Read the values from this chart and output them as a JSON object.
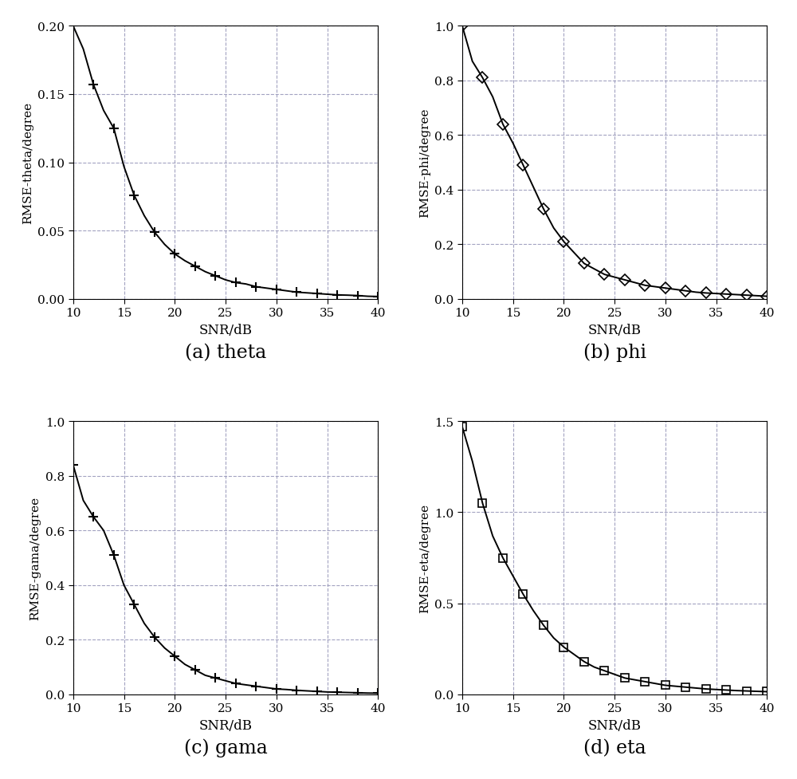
{
  "snr": [
    10,
    11,
    12,
    13,
    14,
    15,
    16,
    17,
    18,
    19,
    20,
    21,
    22,
    23,
    24,
    25,
    26,
    27,
    28,
    29,
    30,
    31,
    32,
    33,
    34,
    35,
    36,
    37,
    38,
    39,
    40
  ],
  "theta_y": [
    0.2,
    0.183,
    0.157,
    0.138,
    0.125,
    0.097,
    0.076,
    0.061,
    0.049,
    0.04,
    0.033,
    0.028,
    0.024,
    0.02,
    0.017,
    0.014,
    0.012,
    0.011,
    0.009,
    0.008,
    0.007,
    0.006,
    0.005,
    0.0045,
    0.004,
    0.0035,
    0.003,
    0.0028,
    0.0025,
    0.002,
    0.0018
  ],
  "phi_y": [
    1.0,
    0.87,
    0.81,
    0.74,
    0.64,
    0.57,
    0.49,
    0.41,
    0.33,
    0.26,
    0.21,
    0.17,
    0.13,
    0.11,
    0.09,
    0.08,
    0.07,
    0.06,
    0.05,
    0.045,
    0.04,
    0.035,
    0.03,
    0.025,
    0.022,
    0.02,
    0.018,
    0.016,
    0.014,
    0.012,
    0.01
  ],
  "gama_y": [
    0.84,
    0.71,
    0.65,
    0.6,
    0.51,
    0.4,
    0.33,
    0.26,
    0.21,
    0.17,
    0.14,
    0.11,
    0.09,
    0.07,
    0.06,
    0.05,
    0.04,
    0.035,
    0.03,
    0.025,
    0.02,
    0.018,
    0.015,
    0.013,
    0.011,
    0.009,
    0.008,
    0.007,
    0.006,
    0.005,
    0.0045
  ],
  "eta_y": [
    1.47,
    1.28,
    1.05,
    0.87,
    0.75,
    0.65,
    0.55,
    0.46,
    0.38,
    0.31,
    0.26,
    0.22,
    0.18,
    0.15,
    0.13,
    0.11,
    0.09,
    0.08,
    0.07,
    0.06,
    0.05,
    0.045,
    0.04,
    0.035,
    0.03,
    0.027,
    0.024,
    0.021,
    0.019,
    0.017,
    0.015
  ],
  "theta_ylim": [
    0,
    0.2
  ],
  "theta_yticks": [
    0,
    0.05,
    0.1,
    0.15,
    0.2
  ],
  "phi_ylim": [
    0,
    1.0
  ],
  "phi_yticks": [
    0,
    0.2,
    0.4,
    0.6,
    0.8,
    1.0
  ],
  "gama_ylim": [
    0,
    1.0
  ],
  "gama_yticks": [
    0,
    0.2,
    0.4,
    0.6,
    0.8,
    1.0
  ],
  "eta_ylim": [
    0,
    1.5
  ],
  "eta_yticks": [
    0,
    0.5,
    1.0,
    1.5
  ],
  "xlim": [
    10,
    40
  ],
  "xticks": [
    10,
    15,
    20,
    25,
    30,
    35,
    40
  ],
  "xlabel": "SNR/dB",
  "ylabel_theta": "RMSE-theta/degree",
  "ylabel_phi": "RMSE-phi/degree",
  "ylabel_gama": "RMSE-gama/degree",
  "ylabel_eta": "RMSE-eta/degree",
  "caption_a": "(a) theta",
  "caption_b": "(b) phi",
  "caption_c": "(c) gama",
  "caption_d": "(d) eta",
  "line_color": "#000000",
  "bg_color": "#ffffff",
  "grid_color": "#9999bb",
  "marker_theta": "+",
  "marker_phi": "D",
  "marker_gama": "+",
  "marker_eta": "s"
}
